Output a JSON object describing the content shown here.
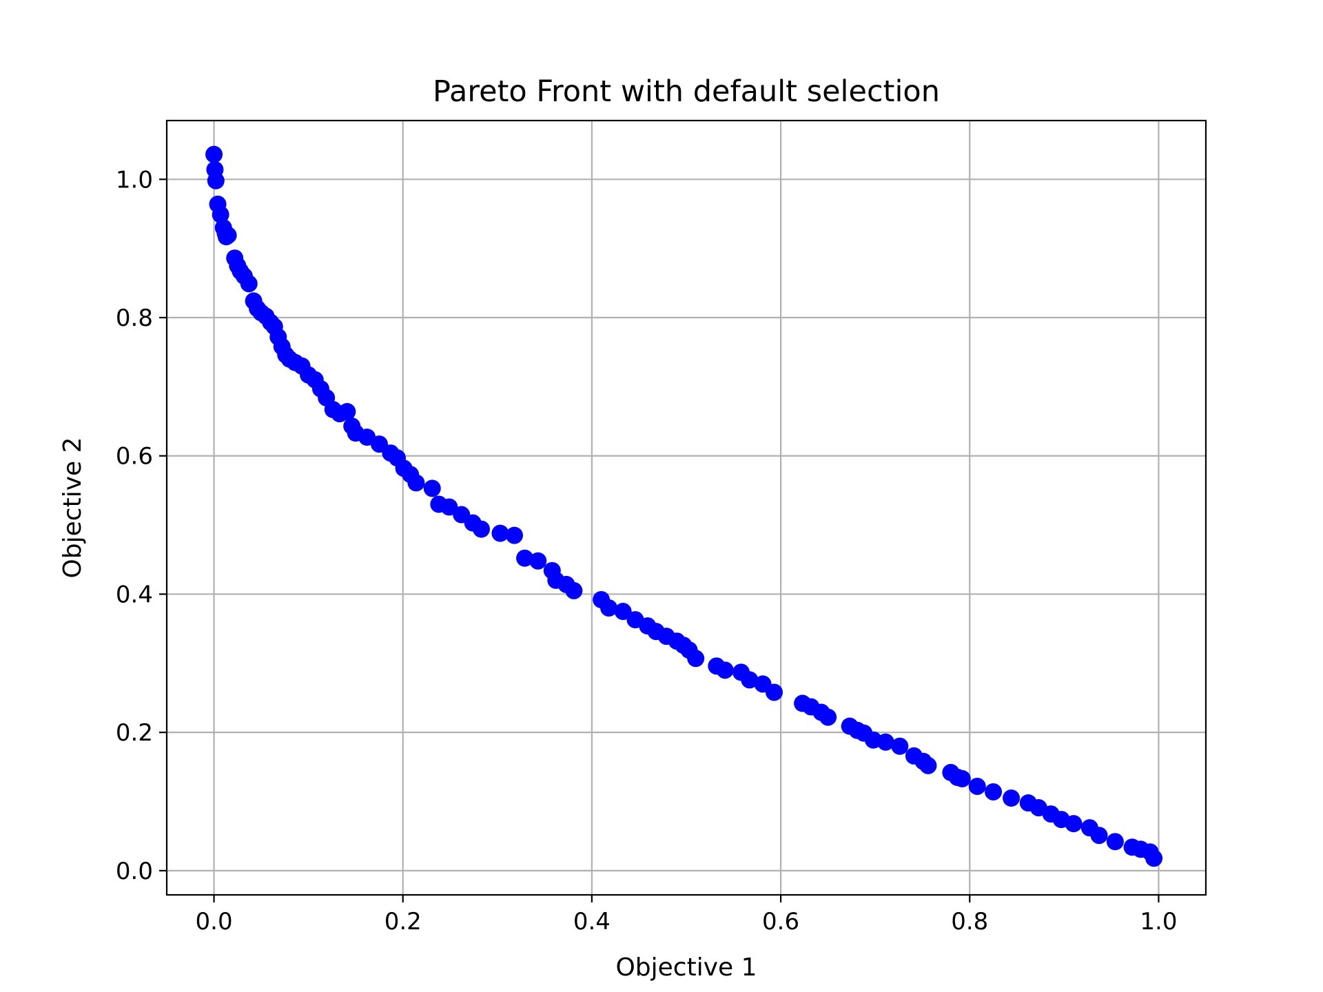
{
  "chart_data": {
    "type": "scatter",
    "title": "Pareto Front with default selection",
    "xlabel": "Objective 1",
    "ylabel": "Objective 2",
    "xlim": [
      -0.05,
      1.05
    ],
    "ylim": [
      -0.035,
      1.085
    ],
    "xticks": [
      0.0,
      0.2,
      0.4,
      0.6,
      0.8,
      1.0
    ],
    "yticks": [
      0.0,
      0.2,
      0.4,
      0.6,
      0.8,
      1.0
    ],
    "xtick_labels": [
      "0.0",
      "0.2",
      "0.4",
      "0.6",
      "0.8",
      "1.0"
    ],
    "ytick_labels": [
      "0.0",
      "0.2",
      "0.4",
      "0.6",
      "0.8",
      "1.0"
    ],
    "grid": true,
    "marker_color": "#0000ff",
    "grid_color": "#b0b0b0",
    "series": [
      {
        "x": [
          0.0,
          0.001,
          0.002,
          0.004,
          0.007,
          0.01,
          0.012,
          0.013,
          0.015,
          0.022,
          0.025,
          0.028,
          0.032,
          0.037,
          0.042,
          0.046,
          0.05,
          0.055,
          0.06,
          0.064,
          0.068,
          0.072,
          0.076,
          0.08,
          0.086,
          0.093,
          0.1,
          0.107,
          0.113,
          0.119,
          0.126,
          0.133,
          0.141,
          0.146,
          0.15,
          0.162,
          0.175,
          0.187,
          0.194,
          0.201,
          0.208,
          0.214,
          0.231,
          0.238,
          0.249,
          0.262,
          0.274,
          0.283,
          0.303,
          0.318,
          0.329,
          0.343,
          0.358,
          0.362,
          0.373,
          0.381,
          0.41,
          0.418,
          0.433,
          0.446,
          0.459,
          0.468,
          0.479,
          0.49,
          0.497,
          0.503,
          0.51,
          0.532,
          0.541,
          0.558,
          0.567,
          0.581,
          0.593,
          0.623,
          0.632,
          0.643,
          0.65,
          0.673,
          0.681,
          0.688,
          0.698,
          0.711,
          0.726,
          0.741,
          0.751,
          0.756,
          0.78,
          0.787,
          0.792,
          0.808,
          0.825,
          0.844,
          0.862,
          0.873,
          0.886,
          0.897,
          0.91,
          0.927,
          0.937,
          0.954,
          0.972,
          0.981,
          0.991,
          0.995
        ],
        "y": [
          1.036,
          1.014,
          0.998,
          0.964,
          0.949,
          0.93,
          0.922,
          0.917,
          0.919,
          0.886,
          0.875,
          0.867,
          0.86,
          0.849,
          0.824,
          0.813,
          0.807,
          0.802,
          0.793,
          0.787,
          0.772,
          0.758,
          0.746,
          0.74,
          0.735,
          0.73,
          0.717,
          0.71,
          0.697,
          0.684,
          0.667,
          0.661,
          0.664,
          0.643,
          0.633,
          0.627,
          0.617,
          0.604,
          0.597,
          0.582,
          0.573,
          0.561,
          0.553,
          0.53,
          0.526,
          0.515,
          0.503,
          0.494,
          0.488,
          0.485,
          0.452,
          0.448,
          0.434,
          0.42,
          0.414,
          0.405,
          0.392,
          0.38,
          0.375,
          0.363,
          0.354,
          0.346,
          0.339,
          0.332,
          0.326,
          0.319,
          0.307,
          0.296,
          0.29,
          0.287,
          0.276,
          0.27,
          0.258,
          0.242,
          0.237,
          0.229,
          0.222,
          0.209,
          0.203,
          0.199,
          0.189,
          0.186,
          0.18,
          0.166,
          0.158,
          0.152,
          0.142,
          0.135,
          0.133,
          0.122,
          0.114,
          0.105,
          0.098,
          0.091,
          0.082,
          0.074,
          0.068,
          0.062,
          0.051,
          0.042,
          0.034,
          0.031,
          0.027,
          0.018
        ]
      }
    ]
  }
}
